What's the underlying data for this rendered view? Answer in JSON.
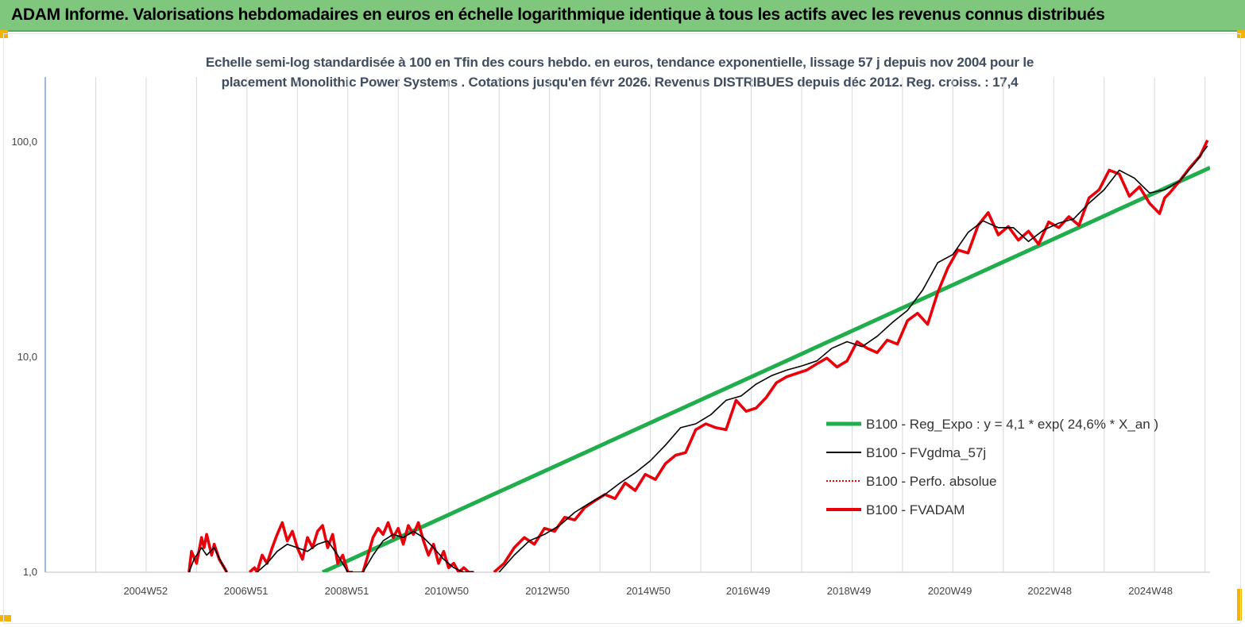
{
  "header": {
    "title": "ADAM Informe. Valorisations hebdomadaires en euros en échelle logarithmique identique à tous les actifs avec les revenus connus distribués"
  },
  "colors": {
    "header_bg": "#7ec77d",
    "accent_corner": "#f2b400",
    "reg_line": "#1fae4b",
    "fvgdma_line": "#000000",
    "perfo_line": "#e8000b",
    "fvadam_line": "#e8000b",
    "axis": "#5b8bc5",
    "grid": "#d9d9d9"
  },
  "chart_data": {
    "type": "line",
    "title_line1": "Echelle semi-log standardisée à 100 en Tfin des cours hebdo. en euros, tendance exponentielle, lissage 57 j depuis nov 2004 pour le",
    "title_line2": "placement Monolithic Power Systems . Cotations jusqu'en févr 2026. Revenus DISTRIBUES depuis déc 2012. Reg. croiss. : 17,4",
    "y_scale": "log",
    "ylim": [
      1,
      180
    ],
    "xlim": [
      2003.0,
      2026.1
    ],
    "y_ticks": [
      {
        "value": 1,
        "label": "1,0"
      },
      {
        "value": 10,
        "label": "10,0"
      },
      {
        "value": 100,
        "label": "100,0"
      }
    ],
    "x_ticks": [
      {
        "value": 2004.99,
        "label": "2004W52"
      },
      {
        "value": 2006.98,
        "label": "2006W51"
      },
      {
        "value": 2008.98,
        "label": "2008W51"
      },
      {
        "value": 2010.96,
        "label": "2010W50"
      },
      {
        "value": 2012.96,
        "label": "2012W50"
      },
      {
        "value": 2014.96,
        "label": "2014W50"
      },
      {
        "value": 2016.94,
        "label": "2016W49"
      },
      {
        "value": 2018.94,
        "label": "2018W49"
      },
      {
        "value": 2020.94,
        "label": "2020W49"
      },
      {
        "value": 2022.92,
        "label": "2022W48"
      },
      {
        "value": 2024.92,
        "label": "2024W48"
      }
    ],
    "grid_x": true,
    "grid_y": false,
    "legend_position": "right",
    "series": [
      {
        "name": "B100 - Reg_Expo : y = 4,1 * exp( 24,6% *  X_an )",
        "color": "#1fae4b",
        "style": "solid",
        "x": [
          2008.5,
          2026.1
        ],
        "y": [
          1.0,
          76
        ]
      },
      {
        "name": "B100 - FVgdma_57j",
        "color": "#000000",
        "style": "solid",
        "segments": [
          {
            "x": [
              2005.85,
              2005.95,
              2006.1,
              2006.2,
              2006.35,
              2006.5,
              2006.6
            ],
            "y": [
              1.0,
              1.15,
              1.3,
              1.2,
              1.3,
              1.1,
              1.0
            ]
          },
          {
            "x": [
              2007.2,
              2007.4,
              2007.6,
              2007.8,
              2008.0,
              2008.2,
              2008.4,
              2008.6,
              2008.8,
              2009.0,
              2009.3
            ],
            "y": [
              1.0,
              1.1,
              1.25,
              1.35,
              1.3,
              1.25,
              1.35,
              1.4,
              1.2,
              1.0,
              1.0
            ]
          },
          {
            "x": [
              2009.3,
              2009.5,
              2009.7,
              2009.9,
              2010.1,
              2010.3,
              2010.5,
              2010.7,
              2010.9,
              2011.1,
              2011.3,
              2011.5
            ],
            "y": [
              1.0,
              1.2,
              1.4,
              1.5,
              1.45,
              1.55,
              1.45,
              1.3,
              1.15,
              1.05,
              1.0,
              1.0
            ]
          },
          {
            "x": [
              2012.0,
              2012.3,
              2012.6,
              2012.9,
              2013.2,
              2013.5,
              2013.8,
              2014.1,
              2014.4,
              2014.7,
              2015.0,
              2015.3,
              2015.6,
              2015.9,
              2016.2,
              2016.5,
              2016.8,
              2017.1,
              2017.4,
              2017.7,
              2018.0,
              2018.3,
              2018.6,
              2018.9,
              2019.2,
              2019.5,
              2019.8,
              2020.1,
              2020.4,
              2020.7,
              2021.0,
              2021.3,
              2021.6,
              2021.9,
              2022.2,
              2022.5,
              2022.8,
              2023.1,
              2023.4,
              2023.7,
              2024.0,
              2024.3,
              2024.6,
              2024.9,
              2025.2,
              2025.5,
              2025.8,
              2026.05
            ],
            "y": [
              1.0,
              1.2,
              1.4,
              1.5,
              1.65,
              1.9,
              2.1,
              2.3,
              2.6,
              2.9,
              3.3,
              3.9,
              4.7,
              4.9,
              5.4,
              6.3,
              6.6,
              7.5,
              8.2,
              8.7,
              9.1,
              9.6,
              11.0,
              11.8,
              11.2,
              12.5,
              14.5,
              16.5,
              20.5,
              27.5,
              30.0,
              38.0,
              43.0,
              40.0,
              40.0,
              34.5,
              39.0,
              42.0,
              44.0,
              52.0,
              60.0,
              74.0,
              68.0,
              58.0,
              60.0,
              66.0,
              80.0,
              96.0
            ]
          }
        ]
      },
      {
        "name": "B100 - Perfo. absolue",
        "color": "#e8000b",
        "style": "dotted"
      },
      {
        "name": "B100 - FVADAM",
        "color": "#e8000b",
        "style": "solid",
        "segments": [
          {
            "x": [
              2005.85,
              2005.9,
              2006.0,
              2006.1,
              2006.15,
              2006.2,
              2006.3,
              2006.35,
              2006.45,
              2006.55,
              2006.6
            ],
            "y": [
              1.0,
              1.25,
              1.1,
              1.45,
              1.3,
              1.5,
              1.2,
              1.35,
              1.15,
              1.05,
              1.0
            ]
          },
          {
            "x": [
              2007.05,
              2007.15,
              2007.2,
              2007.3,
              2007.4,
              2007.5,
              2007.6,
              2007.7,
              2007.8,
              2007.9,
              2008.0,
              2008.1,
              2008.2,
              2008.3,
              2008.4,
              2008.5,
              2008.6,
              2008.7,
              2008.8,
              2008.9,
              2009.0,
              2009.1
            ],
            "y": [
              1.0,
              1.05,
              1.0,
              1.2,
              1.1,
              1.3,
              1.5,
              1.7,
              1.4,
              1.55,
              1.3,
              1.15,
              1.45,
              1.3,
              1.55,
              1.65,
              1.3,
              1.5,
              1.1,
              1.2,
              1.0,
              1.0
            ]
          },
          {
            "x": [
              2009.3,
              2009.4,
              2009.5,
              2009.6,
              2009.7,
              2009.8,
              2009.9,
              2010.0,
              2010.1,
              2010.2,
              2010.3,
              2010.4,
              2010.5,
              2010.6,
              2010.7,
              2010.8,
              2010.9,
              2011.0,
              2011.1,
              2011.2,
              2011.3,
              2011.4,
              2011.5
            ],
            "y": [
              1.0,
              1.2,
              1.45,
              1.6,
              1.5,
              1.7,
              1.45,
              1.6,
              1.35,
              1.65,
              1.5,
              1.7,
              1.4,
              1.2,
              1.35,
              1.1,
              1.25,
              1.05,
              1.1,
              1.0,
              1.05,
              1.0,
              1.0
            ]
          },
          {
            "x": [
              2011.9,
              2012.1,
              2012.3,
              2012.5,
              2012.7,
              2012.9,
              2013.1,
              2013.3,
              2013.5,
              2013.7,
              2013.9,
              2014.1,
              2014.3,
              2014.5,
              2014.7,
              2014.9,
              2015.1,
              2015.3,
              2015.5,
              2015.7,
              2015.9,
              2016.1,
              2016.3,
              2016.5,
              2016.7,
              2016.9,
              2017.1,
              2017.3,
              2017.5,
              2017.7,
              2017.9,
              2018.1,
              2018.3,
              2018.5,
              2018.7,
              2018.9,
              2019.1,
              2019.3,
              2019.5,
              2019.7,
              2019.9,
              2020.1,
              2020.3,
              2020.5,
              2020.7,
              2020.9,
              2021.1,
              2021.3,
              2021.5,
              2021.7,
              2021.9,
              2022.1,
              2022.3,
              2022.5,
              2022.7,
              2022.9,
              2023.1,
              2023.3,
              2023.5,
              2023.7,
              2023.9,
              2024.1,
              2024.3,
              2024.5,
              2024.7,
              2024.9,
              2025.1,
              2025.2,
              2025.3,
              2025.5,
              2025.7,
              2025.9,
              2026.05
            ],
            "y": [
              1.0,
              1.1,
              1.3,
              1.45,
              1.35,
              1.6,
              1.55,
              1.8,
              1.75,
              2.0,
              2.15,
              2.3,
              2.2,
              2.6,
              2.4,
              2.85,
              2.7,
              3.2,
              3.5,
              3.6,
              4.6,
              4.9,
              4.7,
              4.6,
              6.3,
              5.6,
              5.8,
              6.5,
              7.6,
              8.1,
              8.4,
              8.7,
              9.3,
              9.9,
              9.0,
              9.6,
              11.8,
              11.0,
              10.5,
              12.0,
              11.5,
              14.8,
              16.0,
              14.2,
              20.0,
              26.0,
              31.5,
              30.5,
              41.0,
              47.0,
              37.0,
              40.5,
              35.0,
              38.5,
              33.5,
              42.5,
              40.0,
              45.0,
              41.0,
              55.0,
              60.0,
              74.0,
              71.0,
              56.0,
              62.0,
              52.0,
              46.5,
              55.0,
              58.0,
              66.0,
              76.0,
              86.0,
              102.0
            ]
          }
        ]
      }
    ]
  }
}
